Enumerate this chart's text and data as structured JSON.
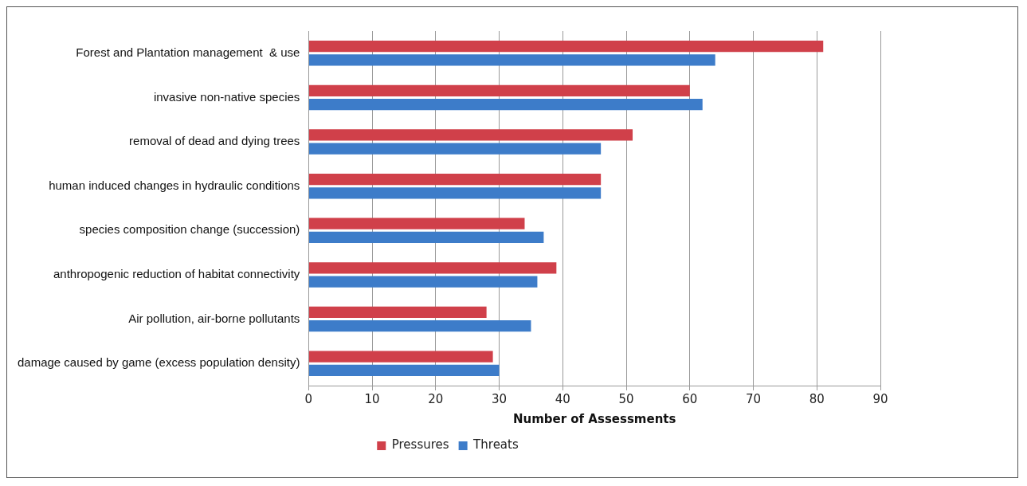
{
  "chart_data": {
    "type": "bar",
    "orientation": "horizontal",
    "xlabel": "Number of Assessments",
    "categories": [
      "Forest and Plantation management  & use",
      "invasive non-native species",
      "removal of dead and dying trees",
      "human induced changes in hydraulic conditions",
      "species composition change (succession)",
      "anthropogenic reduction of habitat connectivity",
      "Air pollution, air-borne pollutants",
      "damage caused by game (excess population density)"
    ],
    "series": [
      {
        "name": "Pressures",
        "color": "#d0404a",
        "values": [
          81,
          60,
          51,
          46,
          34,
          39,
          28,
          29
        ]
      },
      {
        "name": "Threats",
        "color": "#3d7cc9",
        "values": [
          64,
          62,
          46,
          46,
          37,
          36,
          35,
          30
        ]
      }
    ],
    "xlim": [
      0,
      90
    ],
    "xticks": [
      0,
      10,
      20,
      30,
      40,
      50,
      60,
      70,
      80,
      90
    ],
    "grid": "x",
    "legend": "bottom"
  }
}
